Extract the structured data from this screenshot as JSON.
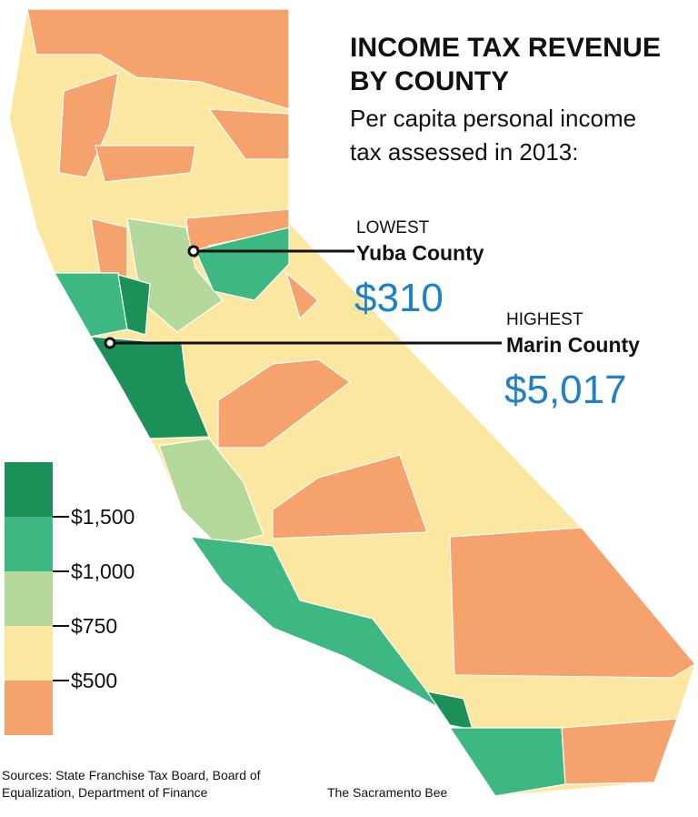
{
  "header": {
    "title": [
      "INCOME TAX REVENUE",
      "BY COUNTY"
    ],
    "subtitle": [
      "Per capita personal income",
      "tax assessed in 2013:"
    ]
  },
  "callouts": [
    {
      "label": "LOWEST",
      "county": "Yuba County",
      "value": "$310"
    },
    {
      "label": "HIGHEST",
      "county": "Marin County",
      "value": "$5,017"
    }
  ],
  "legend": {
    "colors": [
      "#1b9058",
      "#3db882",
      "#b5d99b",
      "#fbe7a0",
      "#f5a26d"
    ],
    "labels": [
      "$1,500",
      "$1,000",
      "$750",
      "$500"
    ]
  },
  "footer": {
    "sources": [
      "Sources: State Franchise Tax Board, Board of",
      "Equalization, Department of Finance"
    ],
    "credit": "The Sacramento Bee"
  }
}
